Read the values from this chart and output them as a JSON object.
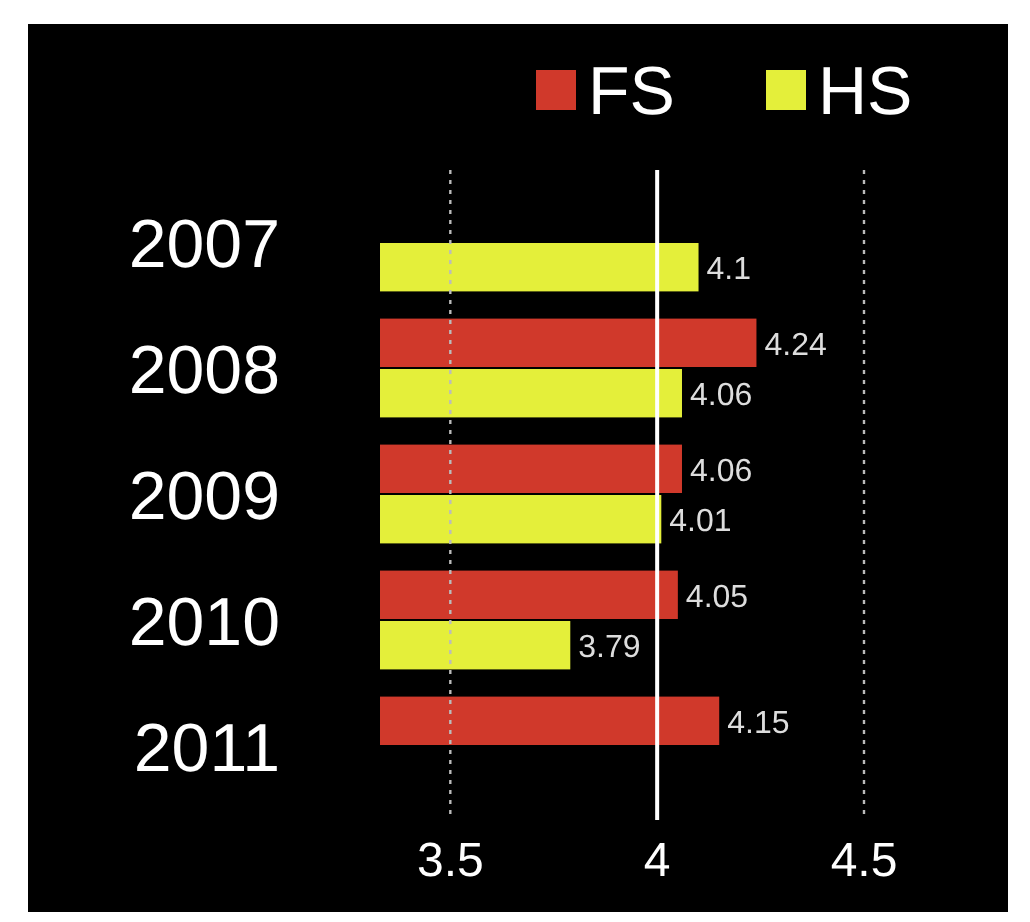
{
  "chart_data": {
    "type": "bar",
    "orientation": "horizontal",
    "categories": [
      "2007",
      "2008",
      "2009",
      "2010",
      "2011"
    ],
    "series": [
      {
        "name": "FS",
        "color": "#d0392b",
        "values": [
          null,
          4.24,
          4.06,
          4.05,
          4.15
        ]
      },
      {
        "name": "HS",
        "color": "#e4ef3a",
        "values": [
          4.1,
          4.06,
          4.01,
          3.79,
          null
        ]
      }
    ],
    "xlim": [
      3.33,
      4.5
    ],
    "xticks": [
      3.5,
      4,
      4.5
    ],
    "ref_lines": [
      {
        "axis": "x",
        "value": 3.5,
        "color": "#bbbbbb",
        "line_style": "dotted"
      },
      {
        "axis": "x",
        "value": 4,
        "color": "#ffffff",
        "line_style": "solid"
      },
      {
        "axis": "x",
        "value": 4.5,
        "color": "#bbbbbb",
        "line_style": "dotted"
      }
    ],
    "legend": "top right",
    "data_labels": true
  }
}
